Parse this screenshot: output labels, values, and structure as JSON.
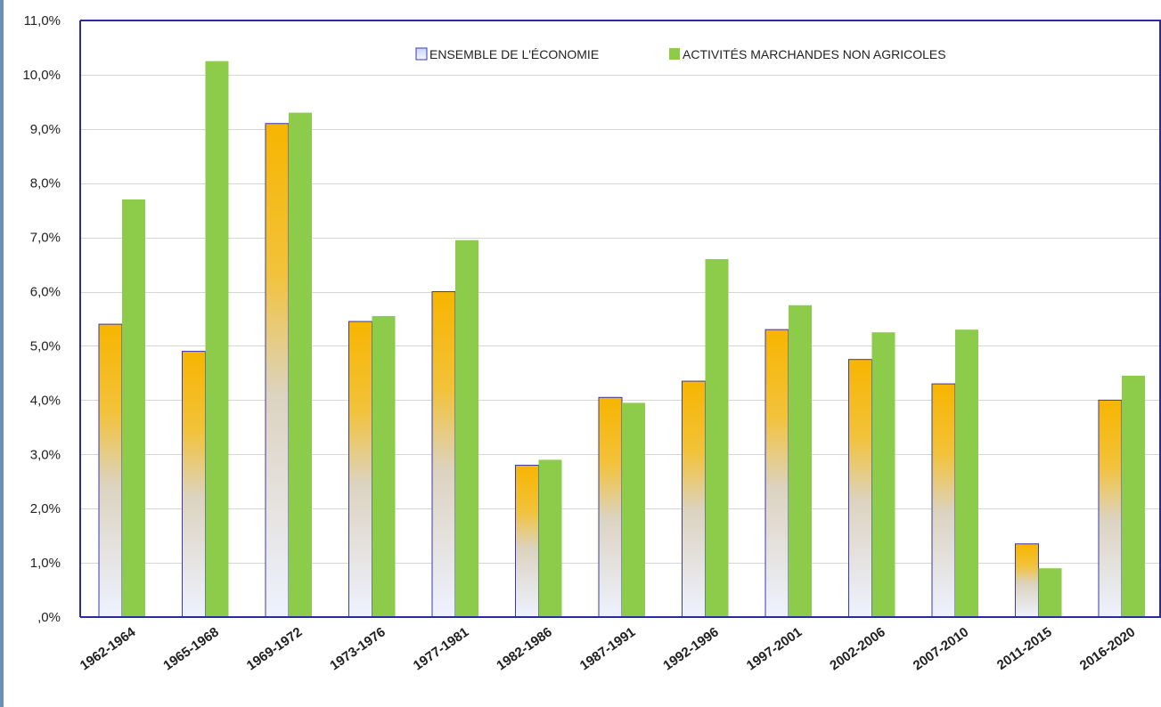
{
  "chart_data": {
    "type": "bar",
    "categories": [
      "1962-1964",
      "1965-1968",
      "1969-1972",
      "1973-1976",
      "1977-1981",
      "1982-1986",
      "1987-1991",
      "1992-1996",
      "1997-2001",
      "2002-2006",
      "2007-2010",
      "2011-2015",
      "2016-2020"
    ],
    "series": [
      {
        "name": "ENSEMBLE DE L'ÉCONOMIE",
        "values": [
          5.4,
          4.9,
          9.1,
          5.45,
          6.0,
          2.8,
          4.05,
          4.35,
          5.3,
          4.75,
          4.3,
          1.35,
          4.0
        ],
        "colors": {
          "top": "#f7b500",
          "mid": "#e6c77a",
          "bottom": "#eef2ff",
          "outline": "#3a3aa8"
        }
      },
      {
        "name": "ACTIVITÉS MARCHANDES NON AGRICOLES",
        "values": [
          7.7,
          10.25,
          9.3,
          5.55,
          6.95,
          2.9,
          3.95,
          6.6,
          5.75,
          5.25,
          5.3,
          0.9,
          4.45
        ],
        "colors": {
          "fill": "#8dcb4a"
        }
      }
    ],
    "ylim": [
      0,
      11
    ],
    "yticks": [
      0,
      1,
      2,
      3,
      4,
      5,
      6,
      7,
      8,
      9,
      10,
      11
    ],
    "ytick_labels": [
      ",0%",
      "1,0%",
      "2,0%",
      "3,0%",
      "4,0%",
      "5,0%",
      "6,0%",
      "7,0%",
      "8,0%",
      "9,0%",
      "10,0%",
      "11,0%"
    ],
    "grid": true,
    "legend_position": "top-right",
    "colors": {
      "frame": "#2b2ba0",
      "grid": "#d6d6d6",
      "left_edge": "#6b8fb5"
    }
  }
}
